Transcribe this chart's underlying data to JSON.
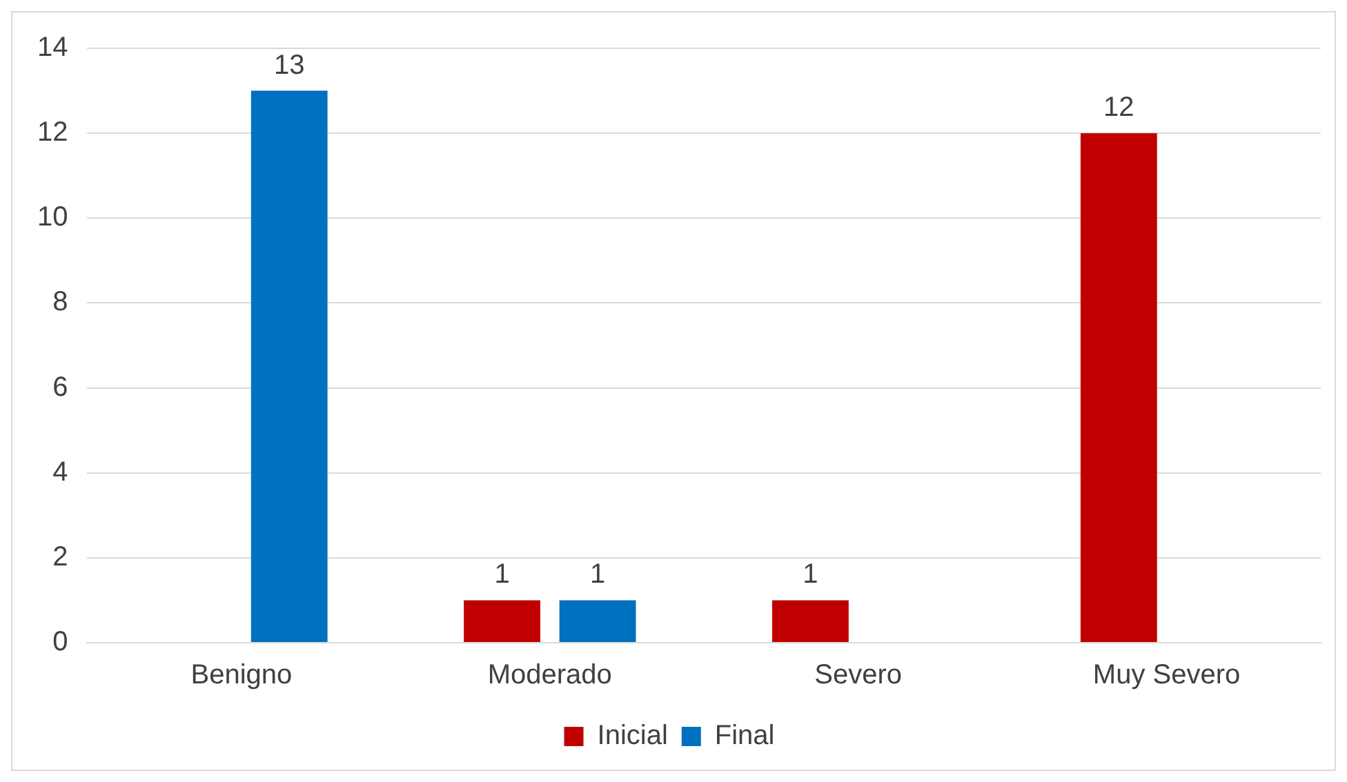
{
  "chart_data": {
    "type": "bar",
    "categories": [
      "Benigno",
      "Moderado",
      "Severo",
      "Muy Severo"
    ],
    "series": [
      {
        "name": "Inicial",
        "color": "#c00000",
        "values": [
          null,
          1,
          1,
          12
        ]
      },
      {
        "name": "Final",
        "color": "#0070c0",
        "values": [
          13,
          1,
          null,
          null
        ]
      }
    ],
    "ylim": [
      0,
      14
    ],
    "yticks": [
      0,
      2,
      4,
      6,
      8,
      10,
      12,
      14
    ],
    "grid": "y",
    "legend": "bottom",
    "data_labels": true
  }
}
